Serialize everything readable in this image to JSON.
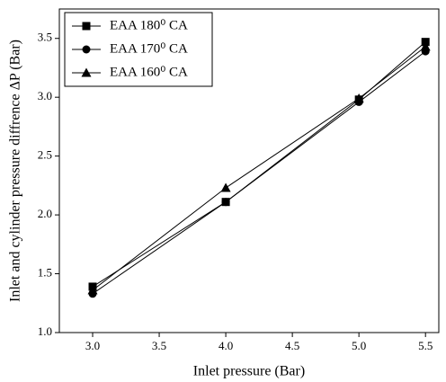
{
  "chart_data": {
    "type": "line",
    "x_label": "Inlet pressure (Bar)",
    "y_label": "Inlet and cylinder pressure diffrence ΔP (Bar)",
    "x": [
      3.0,
      4.0,
      5.0,
      5.5
    ],
    "series": [
      {
        "name": "EAA 180⁰ CA",
        "color": "#000000",
        "marker": "square",
        "values": [
          1.39,
          2.11,
          2.98,
          3.47
        ]
      },
      {
        "name": "EAA 170⁰ CA",
        "color": "#000000",
        "marker": "circle",
        "values": [
          1.33,
          2.11,
          2.96,
          3.39
        ]
      },
      {
        "name": "EAA 160⁰ CA",
        "color": "#000000",
        "marker": "triangle",
        "values": [
          1.36,
          2.23,
          2.99,
          3.43
        ]
      }
    ],
    "xlim": [
      2.75,
      5.6
    ],
    "ylim": [
      1.0,
      3.75
    ],
    "xticks": [
      {
        "value": 3,
        "label": "3.0"
      },
      {
        "value": 3.5,
        "label": "3.5"
      },
      {
        "value": 4,
        "label": "4.0"
      },
      {
        "value": 4.5,
        "label": "4.5"
      },
      {
        "value": 5,
        "label": "5.0"
      },
      {
        "value": 5.5,
        "label": "5.5"
      }
    ],
    "yticks": [
      {
        "value": 1,
        "label": "1.0"
      },
      {
        "value": 1.5,
        "label": "1.5"
      },
      {
        "value": 2,
        "label": "2.0"
      },
      {
        "value": 2.5,
        "label": "2.5"
      },
      {
        "value": 3,
        "label": "3.0"
      },
      {
        "value": 3.5,
        "label": "3.5"
      }
    ],
    "legend": "upper-left"
  }
}
